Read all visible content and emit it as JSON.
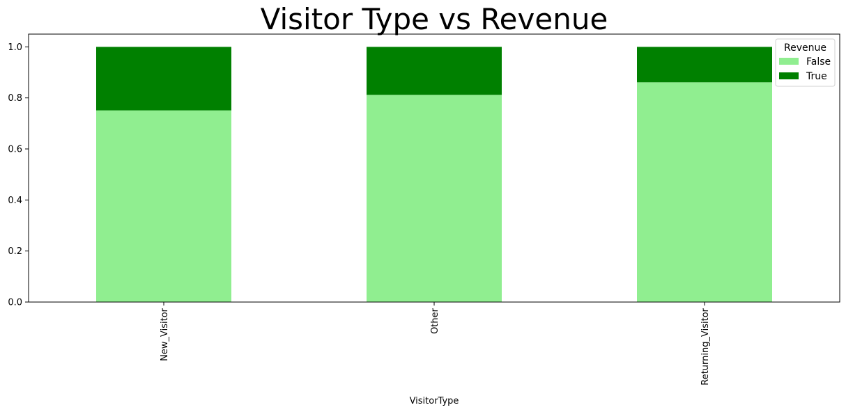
{
  "chart_data": {
    "type": "bar",
    "stacked": true,
    "title": "Visitor Type vs Revenue",
    "xlabel": "VisitorType",
    "ylabel": "",
    "categories": [
      "New_Visitor",
      "Other",
      "Returning_Visitor"
    ],
    "series": [
      {
        "name": "False",
        "color": "#90EE90",
        "values": [
          0.751,
          0.812,
          0.861
        ]
      },
      {
        "name": "True",
        "color": "#008000",
        "values": [
          0.249,
          0.188,
          0.139
        ]
      }
    ],
    "ylim": [
      0,
      1.05
    ],
    "yticks": [
      0.0,
      0.2,
      0.4,
      0.6,
      0.8,
      1.0
    ],
    "ytick_labels": [
      "0.0",
      "0.2",
      "0.4",
      "0.6",
      "0.8",
      "1.0"
    ],
    "grid": false,
    "legend": {
      "title": "Revenue",
      "placement": "top-right"
    }
  }
}
